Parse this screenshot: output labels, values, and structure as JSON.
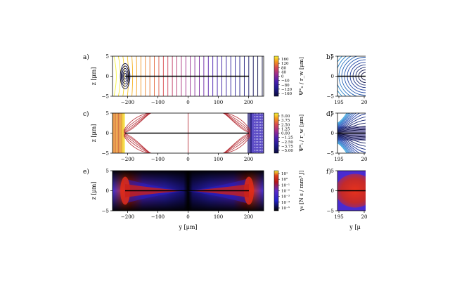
{
  "chart_data": [
    {
      "type": "heatmap",
      "panel_label": "a)",
      "x": {
        "label": "",
        "ticks": [
          "−200",
          "−100",
          "0",
          "100",
          "200"
        ],
        "range": [
          -250,
          250
        ]
      },
      "y": {
        "label": "z [μm]",
        "ticks": [
          "−5",
          "0",
          "5"
        ],
        "range": [
          -5,
          5
        ]
      },
      "colorbar": {
        "title": "Ψ°ₓ / r_w [μm]",
        "ticks": [
          "160",
          "120",
          "80",
          "40",
          "0",
          "−40",
          "−80",
          "−120",
          "−160"
        ],
        "colors": [
          "#f7f53a",
          "#f59a1c",
          "#d94a4e",
          "#9b2a8e",
          "#4b1fb0",
          "#1f1a8f",
          "#0b0b3b"
        ]
      },
      "plot": "contour lines",
      "segment": {
        "y_from": -200,
        "y_to": 200,
        "z": 0
      }
    },
    {
      "type": "heatmap",
      "panel_label": "c)",
      "x": {
        "label": "",
        "ticks": [
          "−200",
          "−100",
          "0",
          "100",
          "200"
        ],
        "range": [
          -250,
          250
        ]
      },
      "y": {
        "label": "z [μm]",
        "ticks": [
          "−5",
          "0",
          "5"
        ],
        "range": [
          -5,
          5
        ]
      },
      "colorbar": {
        "title": "Ψ°ᵢ / r_w [μm]",
        "ticks": [
          "5.00",
          "3.75",
          "2.50",
          "1.25",
          "0.00",
          "−1.25",
          "−2.50",
          "−3.75",
          "−5.00"
        ],
        "colors": [
          "#f7f53a",
          "#f59a1c",
          "#d94a4e",
          "#9b2a8e",
          "#4b1fb0",
          "#1f1a8f",
          "#0b0b3b"
        ]
      },
      "plot": "contour lines",
      "segment": {
        "y_from": -200,
        "y_to": 200,
        "z": 0
      }
    },
    {
      "type": "heatmap",
      "panel_label": "e)",
      "x": {
        "label": "y [μm]",
        "ticks": [
          "−200",
          "−100",
          "0",
          "100",
          "200"
        ],
        "range": [
          -250,
          250
        ]
      },
      "y": {
        "label": "z [μm]",
        "ticks": [
          "−5",
          "0",
          "5"
        ],
        "range": [
          -5,
          5
        ]
      },
      "colorbar": {
        "title": "γ₀ [N s / mm³ J]",
        "ticks": [
          "10¹",
          "10⁰",
          "10⁻¹",
          "10⁻²",
          "10⁻³",
          "10⁻⁴",
          "10⁻⁵"
        ],
        "scale": "log",
        "colors": [
          "#f5f23a",
          "#e04018",
          "#b3141a",
          "#5a2bc8",
          "#2c2ce0",
          "#2020c8",
          "#000000"
        ]
      },
      "plot": "filled map",
      "segment": {
        "y_from": -200,
        "y_to": 200,
        "z": 0
      }
    },
    {
      "type": "heatmap",
      "panel_label": "b)",
      "x": {
        "label": "",
        "ticks": [
          "195",
          "20"
        ]
      },
      "y": {
        "label": "",
        "ticks": [
          "5",
          "0",
          "−5"
        ]
      },
      "plot": "contour lines (cropped)"
    },
    {
      "type": "heatmap",
      "panel_label": "d)",
      "x": {
        "label": "",
        "ticks": [
          "195",
          "20"
        ]
      },
      "y": {
        "label": "",
        "ticks": [
          "5",
          "0",
          "−5"
        ]
      },
      "plot": "contour lines (cropped)"
    },
    {
      "type": "heatmap",
      "panel_label": "f)",
      "x": {
        "label": "y [μ",
        "ticks": [
          "195",
          "20"
        ]
      },
      "y": {
        "label": "",
        "ticks": [
          "5",
          "0",
          "−5"
        ]
      },
      "plot": "filled map (cropped)"
    }
  ]
}
